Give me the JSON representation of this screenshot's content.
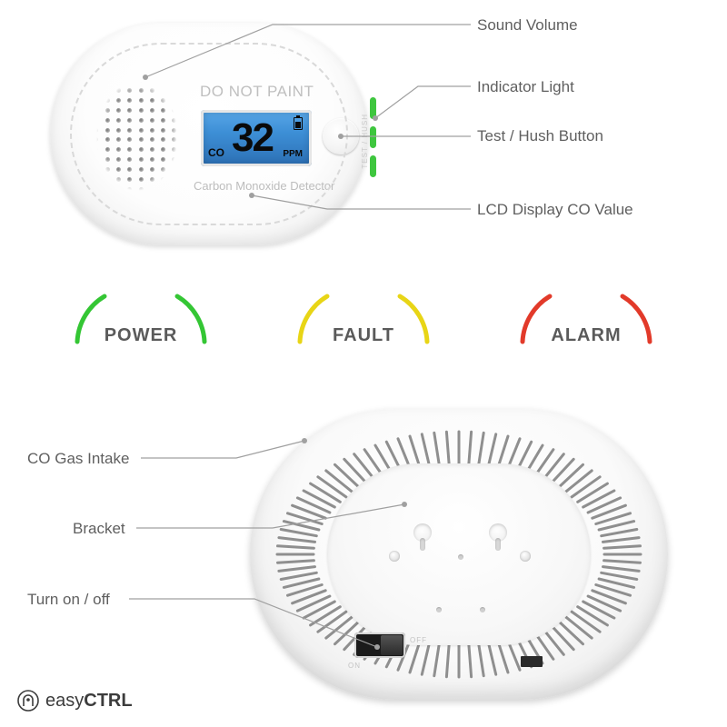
{
  "front": {
    "do_not_paint": "DO NOT PAINT",
    "detector_label": "Carbon Monoxide Detector",
    "button_side_text": "TEST / HUSH",
    "lcd": {
      "co_label": "CO",
      "value": "32",
      "unit": "PPM"
    },
    "led_colors": [
      "#3ec63e",
      "#3ec63e",
      "#3ec63e"
    ]
  },
  "callouts_top": {
    "sound_volume": "Sound Volume",
    "indicator_light": "Indicator Light",
    "test_hush": "Test / Hush Button",
    "lcd_value": "LCD Display CO Value"
  },
  "status": {
    "power": {
      "label": "POWER",
      "color": "#34c634"
    },
    "fault": {
      "label": "FAULT",
      "color": "#e8d516"
    },
    "alarm": {
      "label": "ALARM",
      "color": "#e23a2a"
    }
  },
  "callouts_back": {
    "co_intake": "CO Gas Intake",
    "bracket": "Bracket",
    "turn_on_off": "Turn on / off"
  },
  "back": {
    "switch_on": "ON",
    "switch_off": "OFF"
  },
  "logo": {
    "prefix": "easy",
    "bold": "CTRL"
  },
  "colors": {
    "label_text": "#5f5f5f",
    "lead_line": "#a0a0a0",
    "status_text": "#5a5a5a",
    "lcd_bg_top": "#5aa8e8",
    "lcd_bg_bottom": "#2c6fb4"
  }
}
